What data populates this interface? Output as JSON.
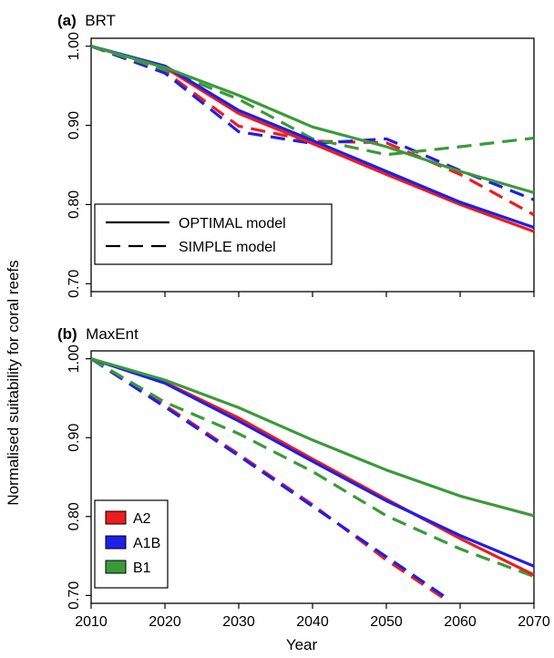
{
  "figure": {
    "ylabel": "Normalised suitability for coral reefs",
    "xlabel": "Year"
  },
  "colors": {
    "A2": "#ee1c1c",
    "A1B": "#1f1fe6",
    "B1": "#3a9a3a"
  },
  "chart_data": [
    {
      "type": "line",
      "panel_tag": "(a)",
      "title": "BRT",
      "xlim": [
        2010,
        2070
      ],
      "ylim": [
        0.69,
        1.01
      ],
      "x_ticks": [
        "2010",
        "2020",
        "2030",
        "2040",
        "2050",
        "2060",
        "2070"
      ],
      "y_ticks": [
        "1.00",
        "0.90",
        "0.80",
        "0.70"
      ],
      "legend": {
        "kind": "linestyle",
        "items": [
          {
            "label": "OPTIMAL model",
            "dash": "solid"
          },
          {
            "label": "SIMPLE model",
            "dash": "dashed"
          }
        ]
      },
      "series": [
        {
          "scenario": "A2",
          "model": "OPTIMAL",
          "x": [
            2010,
            2020,
            2030,
            2040,
            2050,
            2060,
            2070
          ],
          "y": [
            1.0,
            0.973,
            0.915,
            0.877,
            0.838,
            0.8,
            0.766
          ]
        },
        {
          "scenario": "A1B",
          "model": "OPTIMAL",
          "x": [
            2010,
            2020,
            2030,
            2040,
            2050,
            2060,
            2070
          ],
          "y": [
            1.0,
            0.975,
            0.919,
            0.881,
            0.842,
            0.803,
            0.771
          ]
        },
        {
          "scenario": "B1",
          "model": "OPTIMAL",
          "x": [
            2010,
            2020,
            2030,
            2040,
            2050,
            2060,
            2070
          ],
          "y": [
            1.0,
            0.973,
            0.938,
            0.898,
            0.873,
            0.842,
            0.815
          ]
        },
        {
          "scenario": "A2",
          "model": "SIMPLE",
          "x": [
            2010,
            2020,
            2030,
            2040,
            2050,
            2060,
            2070
          ],
          "y": [
            1.0,
            0.968,
            0.899,
            0.88,
            0.878,
            0.838,
            0.787
          ]
        },
        {
          "scenario": "A1B",
          "model": "SIMPLE",
          "x": [
            2010,
            2020,
            2030,
            2040,
            2050,
            2060,
            2070
          ],
          "y": [
            1.0,
            0.966,
            0.892,
            0.877,
            0.883,
            0.843,
            0.806
          ]
        },
        {
          "scenario": "B1",
          "model": "SIMPLE",
          "x": [
            2010,
            2020,
            2030,
            2040,
            2050,
            2060,
            2070
          ],
          "y": [
            1.0,
            0.97,
            0.933,
            0.883,
            0.863,
            0.873,
            0.884
          ]
        }
      ]
    },
    {
      "type": "line",
      "panel_tag": "(b)",
      "title": "MaxEnt",
      "xlim": [
        2010,
        2070
      ],
      "ylim": [
        0.69,
        1.01
      ],
      "x_ticks": [
        "2010",
        "2020",
        "2030",
        "2040",
        "2050",
        "2060",
        "2070"
      ],
      "y_ticks": [
        "1.00",
        "0.90",
        "0.80",
        "0.70"
      ],
      "legend": {
        "kind": "color",
        "items": [
          {
            "label": "A2",
            "color_key": "A2"
          },
          {
            "label": "A1B",
            "color_key": "A1B"
          },
          {
            "label": "B1",
            "color_key": "B1"
          }
        ]
      },
      "series": [
        {
          "scenario": "A2",
          "model": "OPTIMAL",
          "x": [
            2010,
            2020,
            2030,
            2040,
            2050,
            2060,
            2070
          ],
          "y": [
            1.0,
            0.97,
            0.925,
            0.873,
            0.822,
            0.772,
            0.726
          ]
        },
        {
          "scenario": "A1B",
          "model": "OPTIMAL",
          "x": [
            2010,
            2020,
            2030,
            2040,
            2050,
            2060,
            2070
          ],
          "y": [
            1.0,
            0.969,
            0.921,
            0.87,
            0.82,
            0.776,
            0.737
          ]
        },
        {
          "scenario": "B1",
          "model": "OPTIMAL",
          "x": [
            2010,
            2020,
            2030,
            2040,
            2050,
            2060,
            2070
          ],
          "y": [
            1.0,
            0.973,
            0.938,
            0.897,
            0.859,
            0.826,
            0.801
          ]
        },
        {
          "scenario": "A2",
          "model": "SIMPLE",
          "x": [
            2010,
            2020,
            2030,
            2040,
            2050,
            2058
          ],
          "y": [
            1.0,
            0.941,
            0.879,
            0.815,
            0.745,
            0.695
          ]
        },
        {
          "scenario": "A1B",
          "model": "SIMPLE",
          "x": [
            2010,
            2020,
            2030,
            2040,
            2050,
            2058
          ],
          "y": [
            1.0,
            0.939,
            0.877,
            0.813,
            0.749,
            0.698
          ]
        },
        {
          "scenario": "B1",
          "model": "SIMPLE",
          "x": [
            2010,
            2020,
            2030,
            2040,
            2050,
            2060,
            2070
          ],
          "y": [
            1.0,
            0.945,
            0.905,
            0.857,
            0.801,
            0.759,
            0.724
          ]
        }
      ]
    }
  ]
}
